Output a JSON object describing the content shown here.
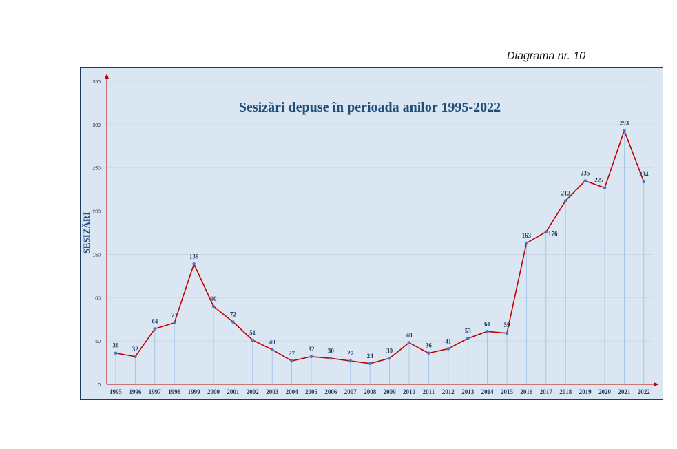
{
  "caption": "Diagrama nr. 10",
  "chart_data": {
    "type": "line",
    "title": "Sesizări depuse în perioada anilor 1995-2022",
    "ylabel": "SESIZĂRI",
    "xlabel": "",
    "ylim": [
      0,
      350
    ],
    "yticks": [
      0,
      50,
      100,
      150,
      200,
      250,
      300,
      350
    ],
    "categories": [
      "1995",
      "1996",
      "1997",
      "1998",
      "1999",
      "2000",
      "2001",
      "2002",
      "2003",
      "2004",
      "2005",
      "2006",
      "2007",
      "2008",
      "2009",
      "2010",
      "2011",
      "2012",
      "2013",
      "2014",
      "2015",
      "2016",
      "2017",
      "2018",
      "2019",
      "2020",
      "2021",
      "2022"
    ],
    "series": [
      {
        "name": "Sesizări",
        "values": [
          36,
          32,
          64,
          71,
          139,
          90,
          72,
          51,
          40,
          27,
          32,
          30,
          27,
          24,
          30,
          48,
          36,
          41,
          53,
          61,
          59,
          163,
          176,
          212,
          235,
          227,
          293,
          234
        ]
      }
    ],
    "colors": {
      "line": "#c00000",
      "marker": "#4a7ab8",
      "text": "#1f3a5f",
      "axis": "#c00000",
      "drop": "#9dbfe3"
    }
  }
}
